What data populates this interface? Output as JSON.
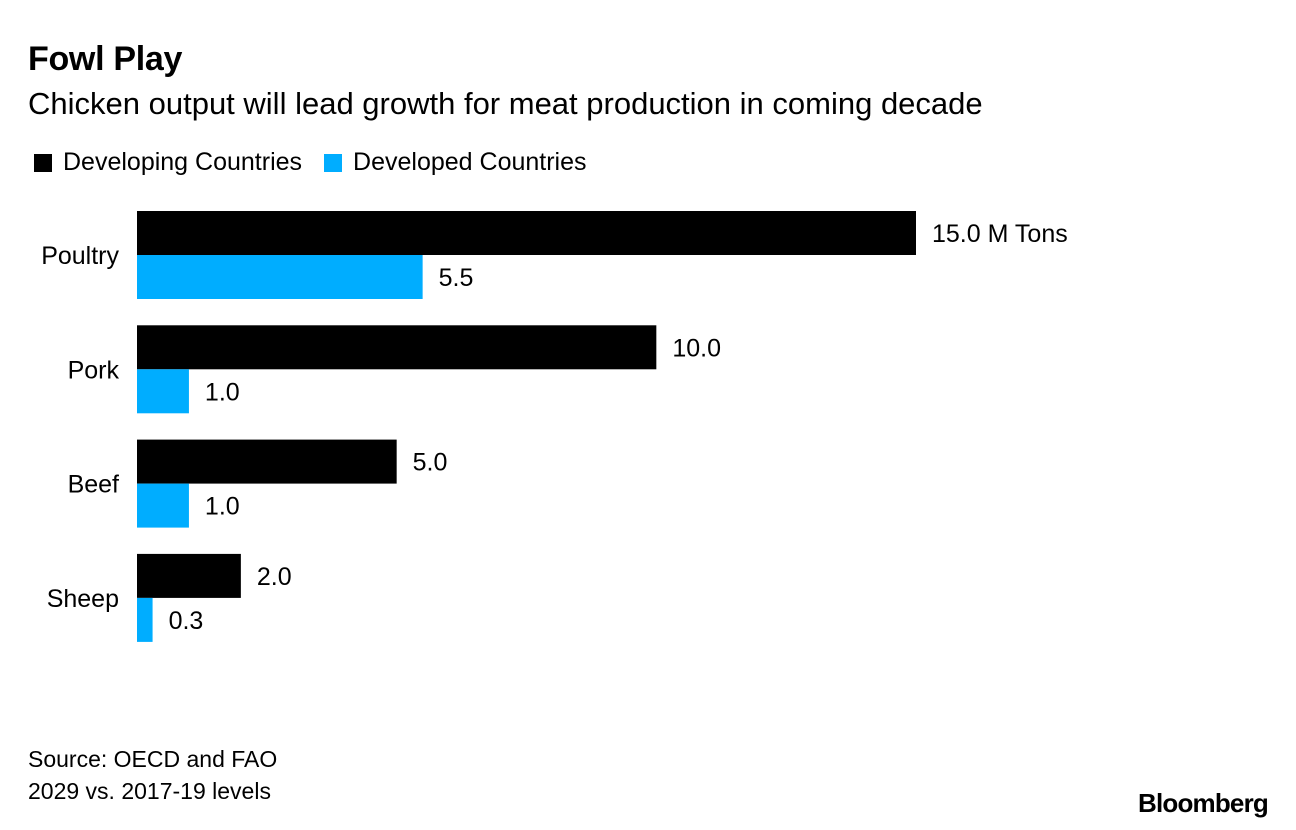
{
  "title": "Fowl Play",
  "subtitle": "Chicken output will lead growth for meat production in coming decade",
  "colors": {
    "developing": "#000000",
    "developed": "#00adff"
  },
  "chart_data": {
    "type": "bar",
    "orientation": "horizontal",
    "categories": [
      "Poultry",
      "Pork",
      "Beef",
      "Sheep"
    ],
    "series": [
      {
        "name": "Developing Countries",
        "values": [
          15.0,
          10.0,
          5.0,
          2.0
        ],
        "labels": [
          "15.0 M Tons",
          "10.0",
          "5.0",
          "2.0"
        ]
      },
      {
        "name": "Developed Countries",
        "values": [
          5.5,
          1.0,
          1.0,
          0.3
        ],
        "labels": [
          "5.5",
          "1.0",
          "1.0",
          "0.3"
        ]
      }
    ],
    "xlim": [
      0,
      15.0
    ],
    "unit": "M Tons",
    "legend_position": "top-left"
  },
  "footnotes": [
    "Source: OECD and FAO",
    "2029 vs. 2017-19 levels"
  ],
  "brand": "Bloomberg"
}
